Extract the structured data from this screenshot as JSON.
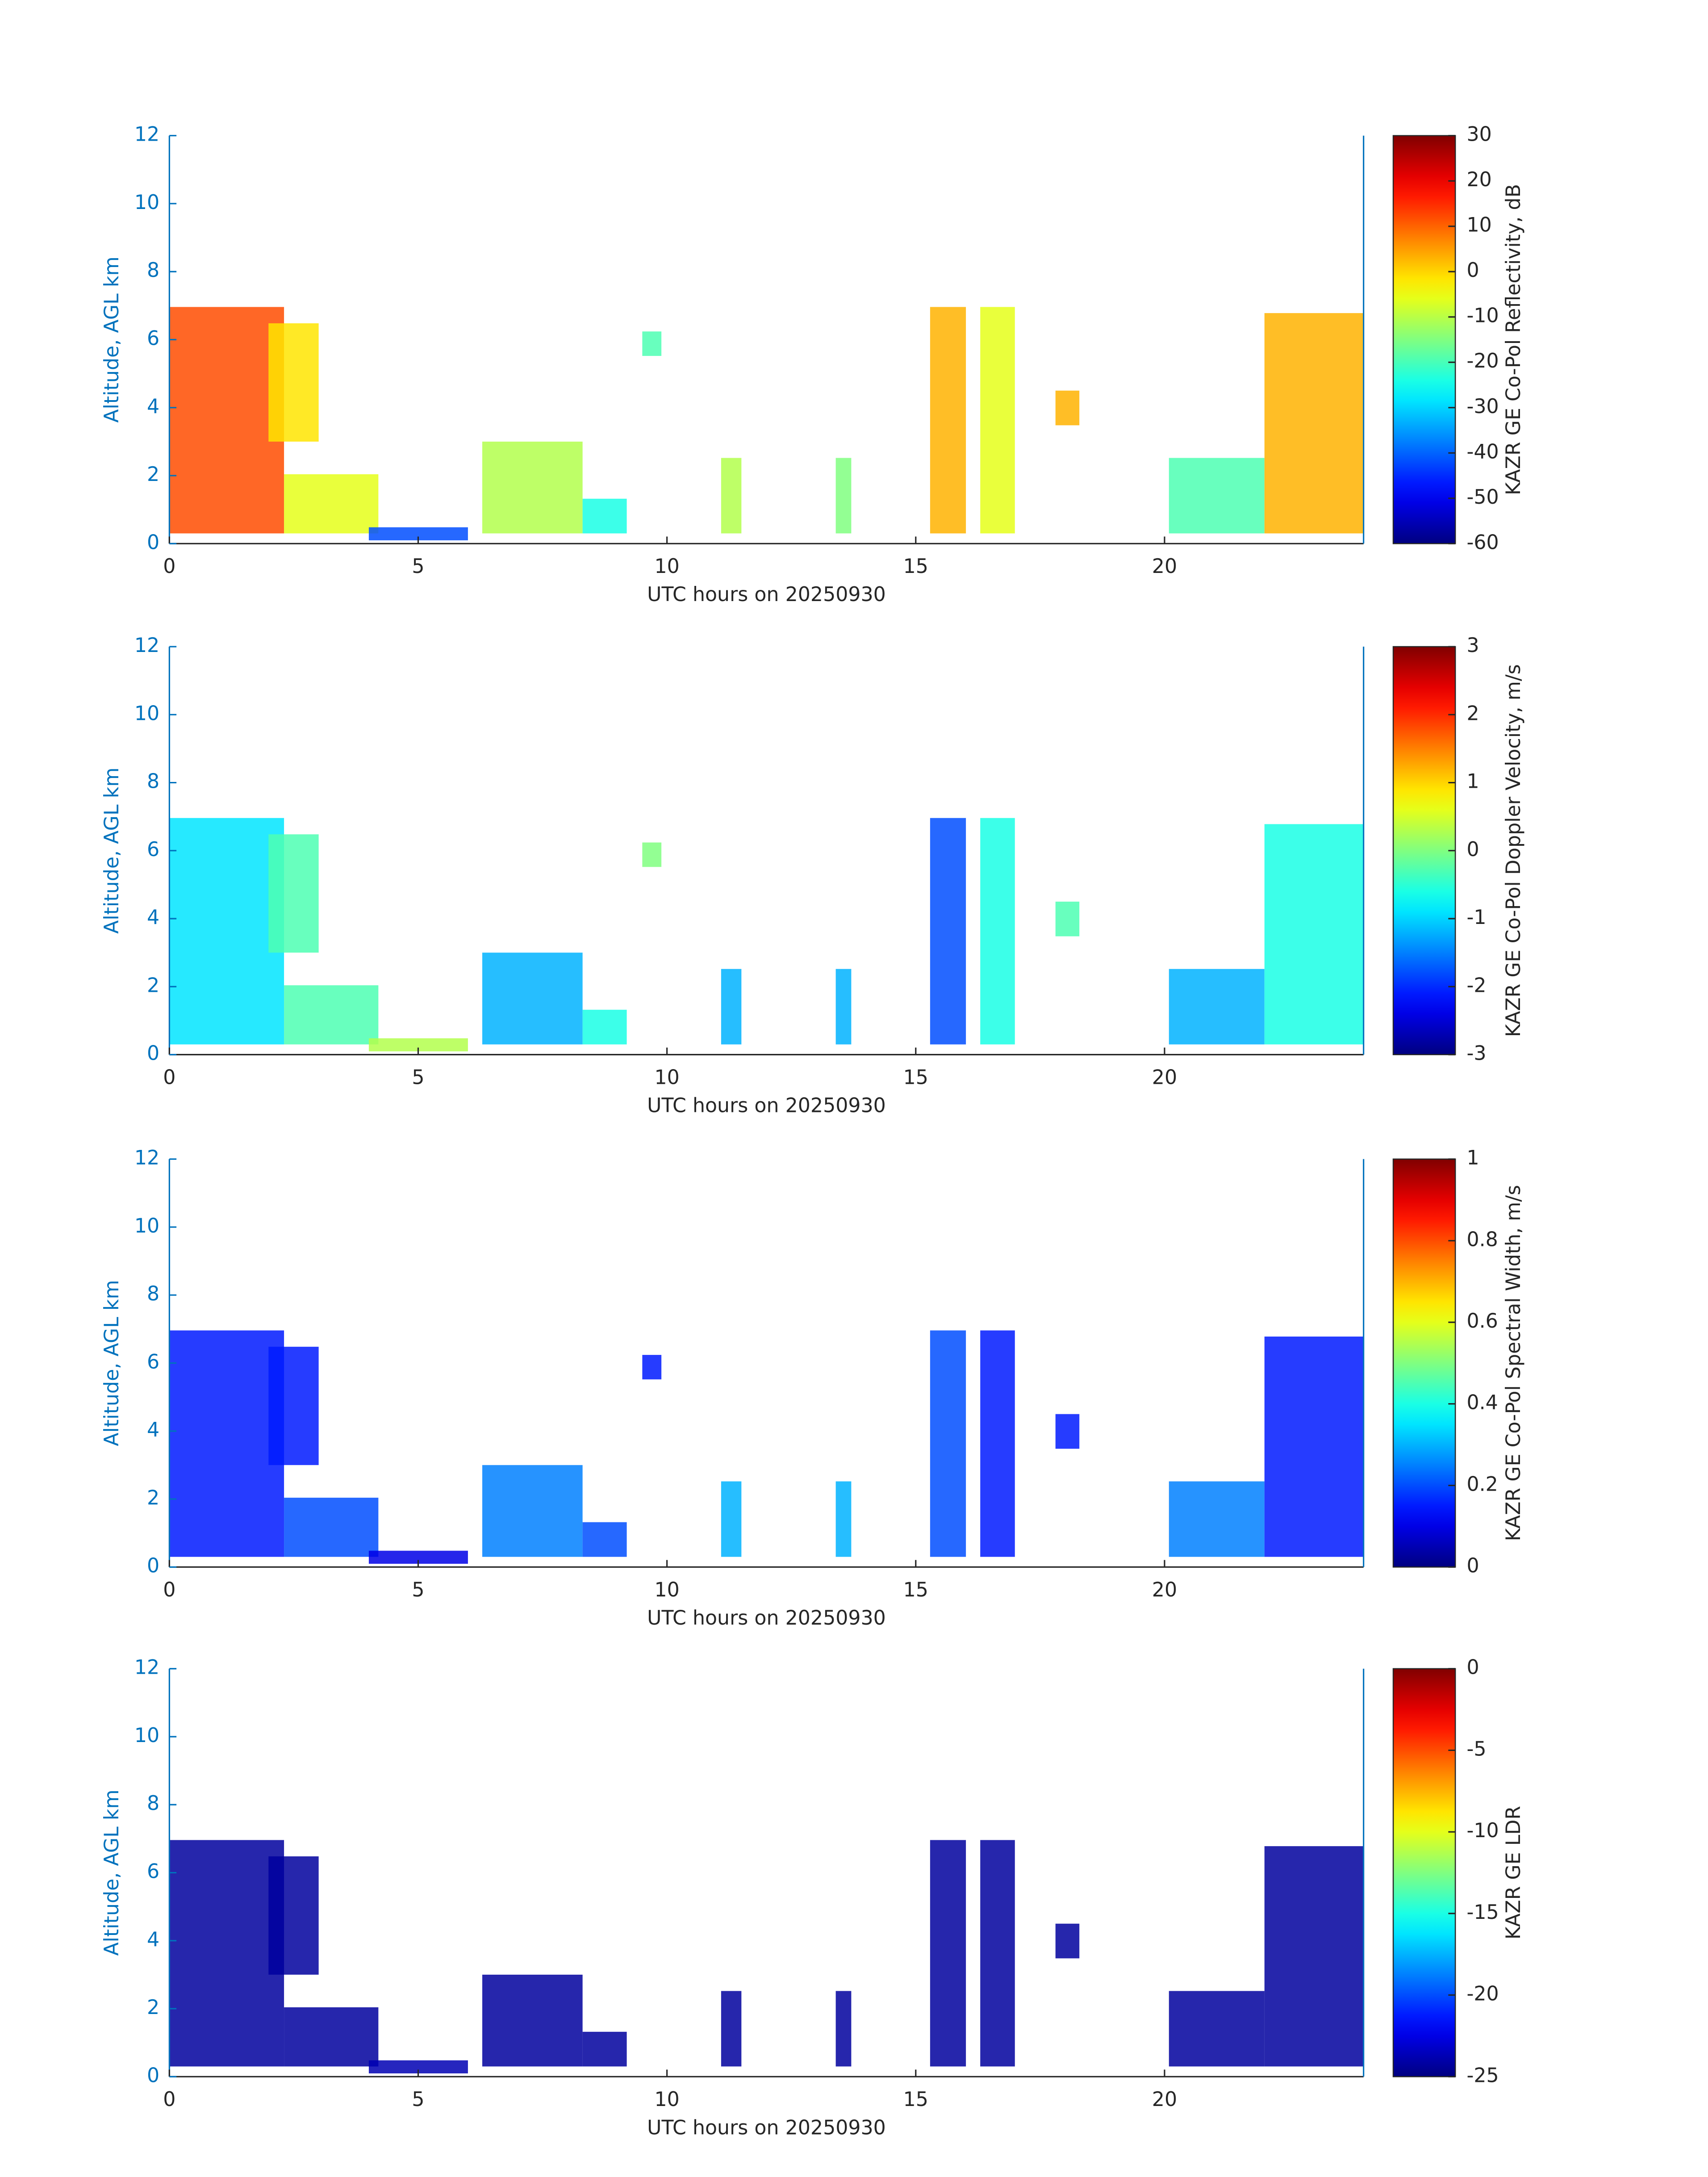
{
  "chart_data": [
    {
      "type": "heatmap",
      "xlabel": "UTC hours on 20250930",
      "ylabel": "Altitude, AGL km",
      "xlim": [
        0,
        24
      ],
      "xticks": [
        0,
        5,
        10,
        15,
        20
      ],
      "ylim": [
        0,
        12
      ],
      "yticks": [
        0,
        2,
        4,
        6,
        8,
        10,
        12
      ],
      "colormap": "jet",
      "colorbar_label": "KAZR GE Co-Pol Reflectivity, dB",
      "clim": [
        -60,
        30
      ],
      "cticks": [
        -60,
        -50,
        -40,
        -30,
        -20,
        -10,
        0,
        10,
        20,
        30
      ]
    },
    {
      "type": "heatmap",
      "xlabel": "UTC hours on 20250930",
      "ylabel": "Altitude, AGL km",
      "xlim": [
        0,
        24
      ],
      "xticks": [
        0,
        5,
        10,
        15,
        20
      ],
      "ylim": [
        0,
        12
      ],
      "yticks": [
        0,
        2,
        4,
        6,
        8,
        10,
        12
      ],
      "colormap": "jet",
      "colorbar_label": "KAZR GE Co-Pol Doppler Velocity, m/s",
      "clim": [
        -3,
        3
      ],
      "cticks": [
        -3,
        -2,
        -1,
        0,
        1,
        2,
        3
      ]
    },
    {
      "type": "heatmap",
      "xlabel": "UTC hours on 20250930",
      "ylabel": "Altitude, AGL km",
      "xlim": [
        0,
        24
      ],
      "xticks": [
        0,
        5,
        10,
        15,
        20
      ],
      "ylim": [
        0,
        12
      ],
      "yticks": [
        0,
        2,
        4,
        6,
        8,
        10,
        12
      ],
      "colormap": "jet",
      "colorbar_label": "KAZR GE Co-Pol Spectral Width, m/s",
      "clim": [
        0,
        1
      ],
      "cticks": [
        0,
        0.2,
        0.4,
        0.6,
        0.8,
        1
      ]
    },
    {
      "type": "heatmap",
      "xlabel": "UTC hours on 20250930",
      "ylabel": "Altitude, AGL km",
      "xlim": [
        0,
        24
      ],
      "xticks": [
        0,
        5,
        10,
        15,
        20
      ],
      "ylim": [
        0,
        12
      ],
      "yticks": [
        0,
        2,
        4,
        6,
        8,
        10,
        12
      ],
      "colormap": "jet",
      "colorbar_label": "KAZR GE LDR",
      "clim": [
        -25,
        0
      ],
      "cticks": [
        -25,
        -20,
        -15,
        -10,
        -5,
        0
      ]
    }
  ]
}
